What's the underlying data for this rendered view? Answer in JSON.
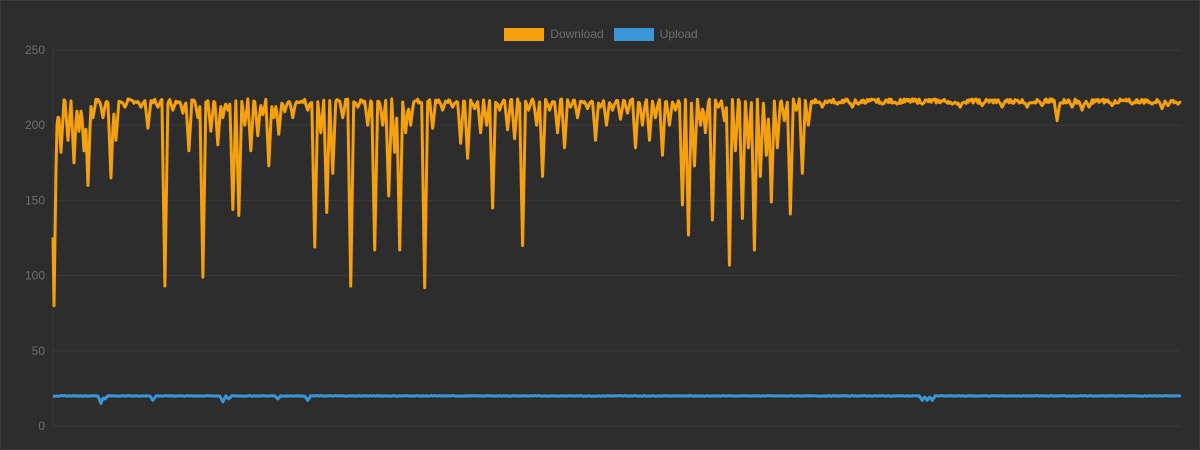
{
  "chart_data": {
    "type": "line",
    "xlabel": "",
    "ylabel": "",
    "ylim": [
      0,
      250
    ],
    "yticks": [
      0,
      50,
      100,
      150,
      200,
      250
    ],
    "grid": true,
    "legend_position": "top-center",
    "background_color": "#2d2d2d",
    "grid_color": "#3a3a3a",
    "series": [
      {
        "name": "Download",
        "color": "#f5a00f",
        "base": 216,
        "values_note": "",
        "dips": [
          [
            1,
            80
          ],
          [
            4,
            200
          ],
          [
            8,
            182
          ],
          [
            15,
            190
          ],
          [
            21,
            175
          ],
          [
            26,
            196
          ],
          [
            31,
            183
          ],
          [
            35,
            160
          ],
          [
            40,
            205
          ],
          [
            50,
            205
          ],
          [
            58,
            165
          ],
          [
            63,
            190
          ],
          [
            72,
            212
          ],
          [
            88,
            212
          ],
          [
            95,
            198
          ],
          [
            105,
            212
          ],
          [
            112,
            93
          ],
          [
            120,
            210
          ],
          [
            130,
            208
          ],
          [
            136,
            183
          ],
          [
            145,
            205
          ],
          [
            150,
            99
          ],
          [
            158,
            196
          ],
          [
            165,
            187
          ],
          [
            170,
            205
          ],
          [
            175,
            210
          ],
          [
            180,
            144
          ],
          [
            186,
            140
          ],
          [
            192,
            200
          ],
          [
            198,
            183
          ],
          [
            205,
            193
          ],
          [
            210,
            207
          ],
          [
            216,
            173
          ],
          [
            221,
            205
          ],
          [
            226,
            194
          ],
          [
            232,
            209
          ],
          [
            240,
            205
          ],
          [
            246,
            215
          ],
          [
            255,
            210
          ],
          [
            262,
            119
          ],
          [
            268,
            195
          ],
          [
            274,
            142
          ],
          [
            280,
            168
          ],
          [
            290,
            205
          ],
          [
            298,
            93
          ],
          [
            305,
            212
          ],
          [
            315,
            200
          ],
          [
            322,
            117
          ],
          [
            330,
            200
          ],
          [
            336,
            153
          ],
          [
            342,
            182
          ],
          [
            347,
            117
          ],
          [
            353,
            195
          ],
          [
            358,
            200
          ],
          [
            372,
            92
          ],
          [
            380,
            198
          ],
          [
            390,
            210
          ],
          [
            400,
            212
          ],
          [
            408,
            188
          ],
          [
            415,
            178
          ],
          [
            422,
            211
          ],
          [
            428,
            195
          ],
          [
            434,
            200
          ],
          [
            440,
            145
          ],
          [
            447,
            210
          ],
          [
            455,
            197
          ],
          [
            462,
            191
          ],
          [
            470,
            120
          ],
          [
            476,
            210
          ],
          [
            484,
            200
          ],
          [
            490,
            166
          ],
          [
            497,
            210
          ],
          [
            505,
            195
          ],
          [
            512,
            185
          ],
          [
            518,
            212
          ],
          [
            525,
            205
          ],
          [
            535,
            211
          ],
          [
            543,
            190
          ],
          [
            548,
            212
          ],
          [
            554,
            200
          ],
          [
            560,
            210
          ],
          [
            568,
            204
          ],
          [
            575,
            208
          ],
          [
            583,
            185
          ],
          [
            590,
            200
          ],
          [
            597,
            190
          ],
          [
            603,
            205
          ],
          [
            610,
            180
          ],
          [
            617,
            200
          ],
          [
            623,
            210
          ],
          [
            630,
            147
          ],
          [
            636,
            127
          ],
          [
            642,
            173
          ],
          [
            648,
            200
          ],
          [
            653,
            195
          ],
          [
            660,
            137
          ],
          [
            666,
            212
          ],
          [
            672,
            203
          ],
          [
            677,
            107
          ],
          [
            683,
            183
          ],
          [
            690,
            138
          ],
          [
            696,
            185
          ],
          [
            702,
            117
          ],
          [
            708,
            166
          ],
          [
            714,
            180
          ],
          [
            719,
            149
          ],
          [
            725,
            185
          ],
          [
            732,
            203
          ],
          [
            738,
            141
          ],
          [
            744,
            210
          ],
          [
            750,
            168
          ],
          [
            756,
            200
          ],
          [
            770,
            212
          ],
          [
            785,
            214
          ],
          [
            800,
            212
          ],
          [
            806,
            214
          ],
          [
            830,
            214
          ],
          [
            845,
            214
          ],
          [
            870,
            214
          ],
          [
            900,
            214
          ],
          [
            905,
            214
          ],
          [
            908,
            212
          ],
          [
            930,
            213
          ],
          [
            950,
            212
          ],
          [
            975,
            212
          ],
          [
            990,
            213
          ],
          [
            1005,
            203
          ],
          [
            1020,
            212
          ],
          [
            1030,
            210
          ],
          [
            1037,
            212
          ],
          [
            1060,
            213
          ],
          [
            1080,
            214
          ],
          [
            1100,
            214
          ],
          [
            1110,
            211
          ],
          [
            1116,
            213
          ],
          [
            1126,
            214
          ]
        ]
      },
      {
        "name": "Upload",
        "color": "#3a96d6",
        "base": 20,
        "dips": [
          [
            48,
            15
          ],
          [
            52,
            18
          ],
          [
            100,
            17
          ],
          [
            170,
            16
          ],
          [
            176,
            18
          ],
          [
            225,
            18
          ],
          [
            255,
            17
          ],
          [
            870,
            17
          ],
          [
            875,
            17
          ],
          [
            880,
            17
          ],
          [
            1125,
            20
          ]
        ]
      }
    ]
  },
  "legend": {
    "download_label": "Download",
    "upload_label": "Upload",
    "download_color": "#f5a00f",
    "upload_color": "#3a96d6"
  }
}
